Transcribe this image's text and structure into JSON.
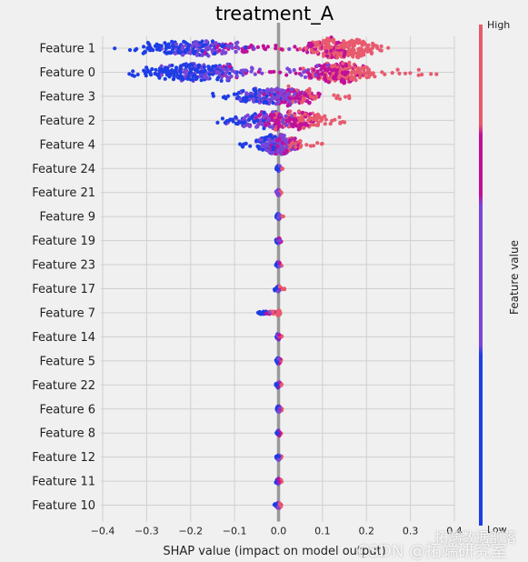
{
  "chart_data": {
    "type": "scatter",
    "subtype": "shap-beeswarm",
    "title": "treatment_A",
    "xlabel": "SHAP value (impact on model output)",
    "xlim": [
      -0.4,
      0.4
    ],
    "xticks": [
      -0.4,
      -0.3,
      -0.2,
      -0.1,
      0.0,
      0.1,
      0.2,
      0.3,
      0.4
    ],
    "xtick_labels": [
      "−0.4",
      "−0.3",
      "−0.2",
      "−0.1",
      "0.0",
      "0.1",
      "0.2",
      "0.3",
      "0.4"
    ],
    "features": [
      {
        "name": "Feature 1",
        "min": -0.38,
        "max": 0.26,
        "q": [
          -0.28,
          -0.18,
          -0.05,
          0.1,
          0.14,
          0.2
        ],
        "density": "bimodal"
      },
      {
        "name": "Feature 0",
        "min": -0.39,
        "max": 0.37,
        "q": [
          -0.28,
          -0.18,
          -0.05,
          0.1,
          0.15,
          0.28
        ],
        "density": "bimodal"
      },
      {
        "name": "Feature 3",
        "min": -0.16,
        "max": 0.19,
        "q": [
          -0.12,
          -0.04,
          0.0,
          0.04,
          0.08
        ],
        "density": "unimodal"
      },
      {
        "name": "Feature 2",
        "min": -0.19,
        "max": 0.15,
        "q": [
          -0.12,
          -0.04,
          0.02,
          0.06,
          0.1
        ],
        "density": "unimodal"
      },
      {
        "name": "Feature 4",
        "min": -0.09,
        "max": 0.1,
        "q": [
          -0.05,
          -0.02,
          0.0,
          0.02,
          0.05
        ],
        "density": "unimodal"
      },
      {
        "name": "Feature 24",
        "min": -0.005,
        "max": 0.012,
        "q": [
          -0.002,
          0.0,
          0.004
        ],
        "density": "narrow"
      },
      {
        "name": "Feature 21",
        "min": -0.014,
        "max": 0.01,
        "q": [
          -0.003,
          0.0,
          0.004
        ],
        "density": "narrow"
      },
      {
        "name": "Feature 9",
        "min": -0.005,
        "max": 0.012,
        "q": [
          -0.002,
          0.0,
          0.004
        ],
        "density": "narrow"
      },
      {
        "name": "Feature 19",
        "min": -0.006,
        "max": 0.009,
        "q": [
          -0.002,
          0.0,
          0.003
        ],
        "density": "narrow"
      },
      {
        "name": "Feature 23",
        "min": -0.008,
        "max": 0.009,
        "q": [
          -0.002,
          0.0,
          0.003
        ],
        "density": "narrow"
      },
      {
        "name": "Feature 17",
        "min": -0.012,
        "max": 0.014,
        "q": [
          -0.003,
          0.0,
          0.004
        ],
        "density": "narrow"
      },
      {
        "name": "Feature 7",
        "min": -0.05,
        "max": 0.005,
        "q": [
          -0.035,
          -0.005,
          0.0
        ],
        "density": "narrow"
      },
      {
        "name": "Feature 14",
        "min": -0.006,
        "max": 0.008,
        "q": [
          -0.002,
          0.0,
          0.003
        ],
        "density": "narrow"
      },
      {
        "name": "Feature 5",
        "min": -0.006,
        "max": 0.008,
        "q": [
          -0.002,
          0.0,
          0.003
        ],
        "density": "narrow"
      },
      {
        "name": "Feature 22",
        "min": -0.006,
        "max": 0.008,
        "q": [
          -0.002,
          0.0,
          0.003
        ],
        "density": "narrow"
      },
      {
        "name": "Feature 6",
        "min": -0.006,
        "max": 0.01,
        "q": [
          -0.002,
          0.0,
          0.004
        ],
        "density": "narrow"
      },
      {
        "name": "Feature 8",
        "min": -0.006,
        "max": 0.008,
        "q": [
          -0.002,
          0.0,
          0.003
        ],
        "density": "narrow"
      },
      {
        "name": "Feature 12",
        "min": -0.006,
        "max": 0.012,
        "q": [
          -0.002,
          0.0,
          0.004
        ],
        "density": "narrow"
      },
      {
        "name": "Feature 11",
        "min": -0.006,
        "max": 0.008,
        "q": [
          -0.002,
          0.0,
          0.003
        ],
        "density": "narrow"
      },
      {
        "name": "Feature 10",
        "min": -0.01,
        "max": 0.008,
        "q": [
          -0.003,
          0.0,
          0.003
        ],
        "density": "narrow"
      }
    ],
    "colorbar": {
      "label": "Feature value",
      "high_label": "High",
      "low_label": "Low",
      "colors": [
        "#1e3de6",
        "#7a46d8",
        "#c0109a",
        "#e85a6e"
      ]
    },
    "grid": true
  },
  "watermarks": {
    "line1": "拓端数据部落",
    "line2": "CSDN @拓端研究室"
  }
}
